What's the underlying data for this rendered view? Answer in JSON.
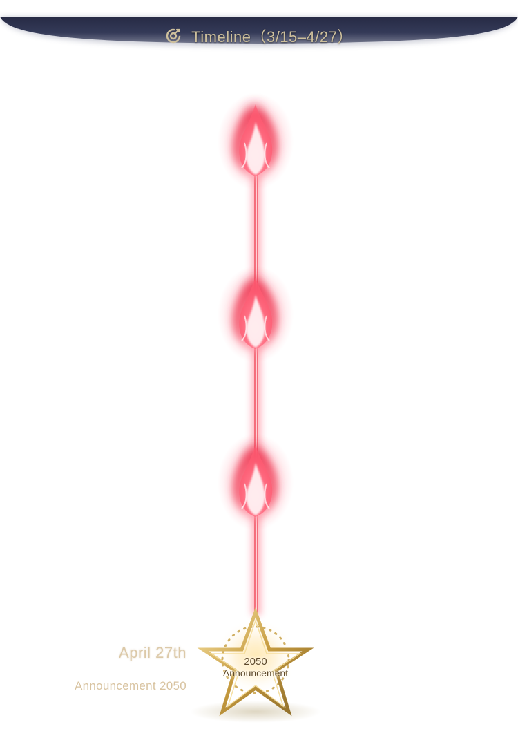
{
  "header": {
    "icon": "target-refresh-icon",
    "title": "Timeline（3/15–4/27）"
  },
  "timeline": {
    "markers": [
      {
        "icon": "red-flame-icon"
      },
      {
        "icon": "red-flame-icon"
      },
      {
        "icon": "red-flame-icon"
      }
    ],
    "events": [
      {
        "date": "April 27th",
        "title": "Announcement 2050",
        "badge_icon": "gold-star-icon",
        "badge_year": "2050",
        "badge_label": "Announcement"
      }
    ]
  },
  "colors": {
    "header_bg": "#2e3350",
    "header_text": "#cdbf9c",
    "flame": "#e8334a",
    "line": "#f0485a",
    "gold": "#c9a24a",
    "date_text": "#dcc9a8"
  }
}
